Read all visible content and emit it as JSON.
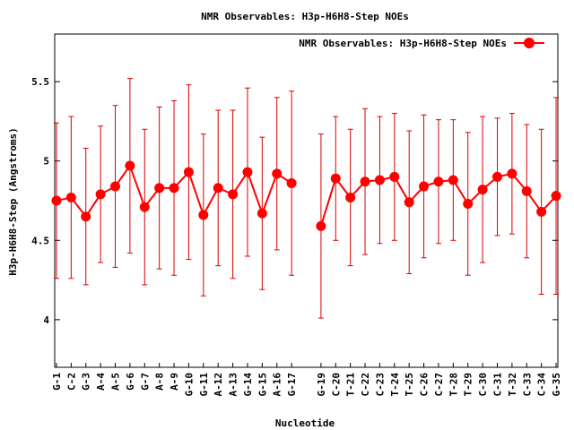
{
  "chart_data": {
    "type": "line",
    "title": "NMR Observables: H3p-H6H8-Step NOEs",
    "xlabel": "Nucleotide",
    "ylabel": "H3p-H6H8-Step (Angstroms)",
    "ylim": [
      3.7,
      5.8
    ],
    "yticks": [
      "4",
      "4.5",
      "5",
      "5.5"
    ],
    "legend": {
      "position": "top-right",
      "label": "NMR Observables: H3p-H6H8-Step NOEs"
    },
    "colors": {
      "series": "#ff0000",
      "errorbar": "#dd0000",
      "axis": "#000000"
    },
    "categories": [
      "G-1",
      "C-2",
      "G-3",
      "A-4",
      "A-5",
      "G-6",
      "G-7",
      "A-8",
      "A-9",
      "G-10",
      "G-11",
      "A-12",
      "A-13",
      "G-14",
      "G-15",
      "A-16",
      "G-17",
      "G-19",
      "C-20",
      "T-21",
      "C-22",
      "C-23",
      "T-24",
      "T-25",
      "C-26",
      "C-27",
      "T-28",
      "T-29",
      "C-30",
      "C-31",
      "T-32",
      "C-33",
      "C-34",
      "G-35"
    ],
    "series": [
      {
        "name": "NMR Observables: H3p-H6H8-Step NOEs",
        "segments": [
          {
            "x": [
              1,
              2,
              3,
              4,
              5,
              6,
              7,
              8,
              9,
              10,
              11,
              12,
              13,
              14,
              15,
              16,
              17
            ],
            "values": [
              4.75,
              4.77,
              4.65,
              4.79,
              4.84,
              4.97,
              4.71,
              4.83,
              4.83,
              4.93,
              4.66,
              4.83,
              4.79,
              4.93,
              4.67,
              4.92,
              4.86
            ],
            "err": [
              0.49,
              0.51,
              0.43,
              0.43,
              0.51,
              0.55,
              0.49,
              0.51,
              0.55,
              0.55,
              0.51,
              0.49,
              0.53,
              0.53,
              0.48,
              0.48,
              0.58
            ]
          },
          {
            "x": [
              19,
              20,
              21,
              22,
              23,
              24,
              25,
              26,
              27,
              28,
              29,
              30,
              31,
              32,
              33,
              34,
              35
            ],
            "values": [
              4.59,
              4.89,
              4.77,
              4.87,
              4.88,
              4.9,
              4.74,
              4.84,
              4.87,
              4.88,
              4.73,
              4.82,
              4.9,
              4.92,
              4.81,
              4.68,
              4.78
            ],
            "err": [
              0.58,
              0.39,
              0.43,
              0.46,
              0.4,
              0.4,
              0.45,
              0.45,
              0.39,
              0.38,
              0.45,
              0.46,
              0.37,
              0.38,
              0.42,
              0.52,
              0.62
            ]
          }
        ]
      }
    ]
  }
}
